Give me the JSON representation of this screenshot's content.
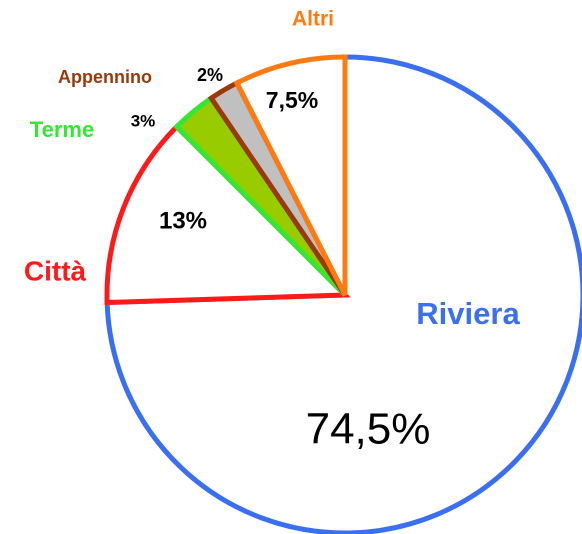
{
  "chart_data": {
    "type": "pie",
    "categories": [
      "Riviera",
      "Città",
      "Terme",
      "Appennino",
      "Altri"
    ],
    "values": [
      74.5,
      13,
      3,
      2,
      7.5
    ],
    "value_labels": [
      "74,5%",
      "13%",
      "3%",
      "2%",
      "7,5%"
    ],
    "colors": [
      "#3b6ff2",
      "#ff1a1a",
      "#33e833",
      "#9a3a0a",
      "#ff7a10"
    ],
    "fill_colors": [
      "#ffffff",
      "#ffffff",
      "#99cc00",
      "#c0c0c0",
      "#ffffff"
    ]
  }
}
